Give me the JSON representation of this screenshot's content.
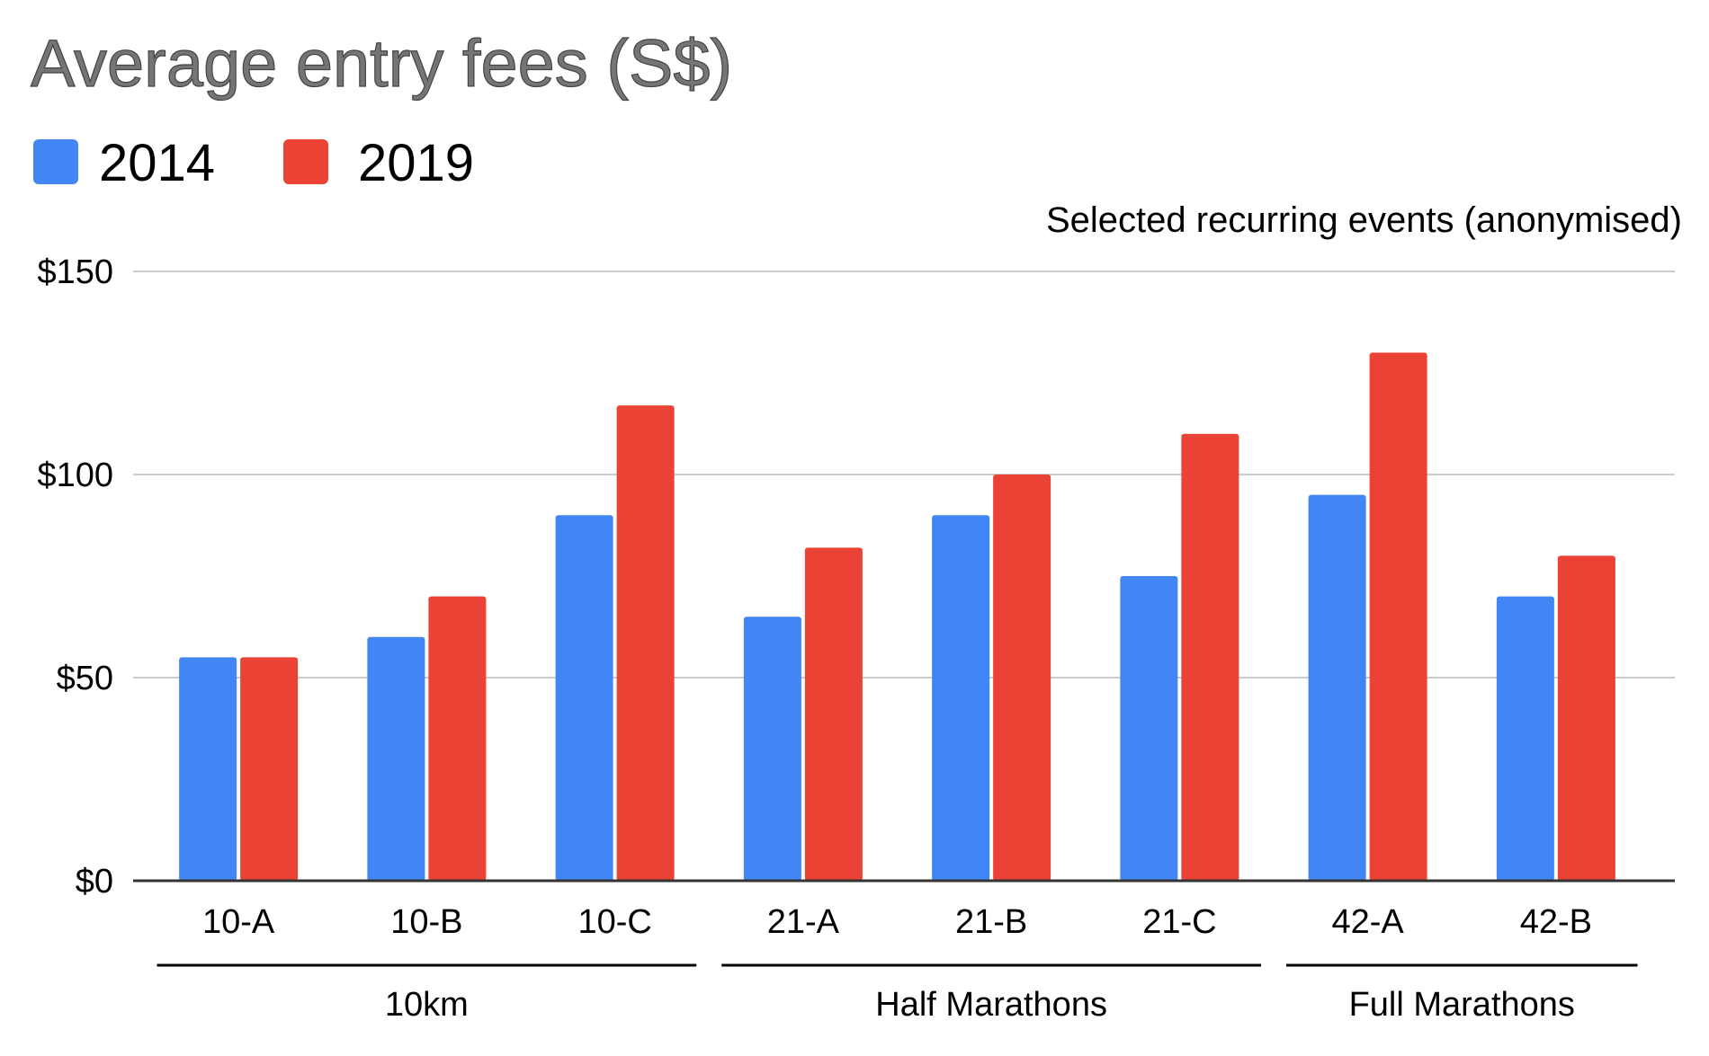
{
  "chart_data": {
    "type": "bar",
    "title": "Average entry fees (S$)",
    "subtitle": "Selected recurring events (anonymised)",
    "categories": [
      "10-A",
      "10-B",
      "10-C",
      "21-A",
      "21-B",
      "21-C",
      "42-A",
      "42-B"
    ],
    "groups": [
      {
        "label": "10km",
        "categories": [
          "10-A",
          "10-B",
          "10-C"
        ]
      },
      {
        "label": "Half Marathons",
        "categories": [
          "21-A",
          "21-B",
          "21-C"
        ]
      },
      {
        "label": "Full Marathons",
        "categories": [
          "42-A",
          "42-B"
        ]
      }
    ],
    "series": [
      {
        "name": "2014",
        "color": "#4285F4",
        "values": [
          55,
          60,
          90,
          65,
          90,
          75,
          95,
          70
        ]
      },
      {
        "name": "2019",
        "color": "#EA4335",
        "values": [
          55,
          70,
          117,
          82,
          100,
          110,
          130,
          80
        ]
      }
    ],
    "ylim": [
      0,
      150
    ],
    "yticks": [
      0,
      50,
      100,
      150
    ],
    "ytick_labels": [
      "$0",
      "$50",
      "$100",
      "$150"
    ],
    "grid": true,
    "legend_position": "top-left"
  }
}
